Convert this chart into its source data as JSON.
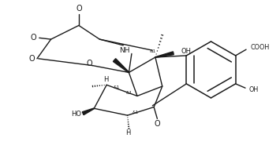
{
  "bg_color": "#ffffff",
  "line_color": "#1a1a1a",
  "line_width": 1.0,
  "fig_width": 3.55,
  "fig_height": 1.99,
  "dpi": 100,
  "xlim": [
    0,
    10
  ],
  "ylim": [
    0,
    5.6
  ]
}
